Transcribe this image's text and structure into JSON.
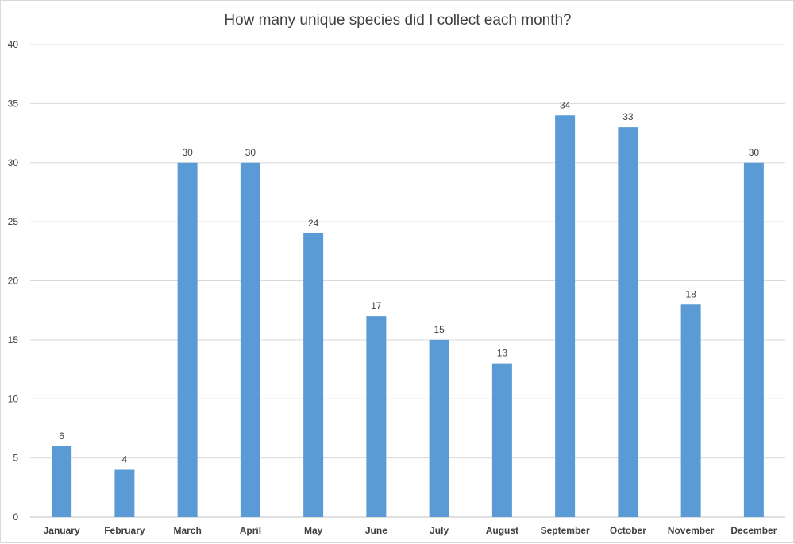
{
  "chart_data": {
    "type": "bar",
    "title": "How many unique species did I collect each month?",
    "categories": [
      "January",
      "February",
      "March",
      "April",
      "May",
      "June",
      "July",
      "August",
      "September",
      "October",
      "November",
      "December"
    ],
    "values": [
      6,
      4,
      30,
      30,
      24,
      17,
      15,
      13,
      34,
      33,
      18,
      30
    ],
    "ylim": [
      0,
      40
    ],
    "yticks": [
      0,
      5,
      10,
      15,
      20,
      25,
      30,
      35,
      40
    ],
    "grid": true,
    "data_labels": true,
    "bar_color": "#5b9bd5"
  }
}
